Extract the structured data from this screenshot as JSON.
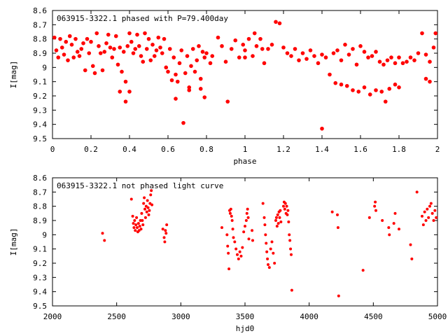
{
  "colors": {
    "series": "#ff0000",
    "axis": "#000000",
    "background": "#ffffff"
  },
  "chart_data": [
    {
      "type": "scatter",
      "title": "063915-3322.1 phased with P=79.400day",
      "xlabel": "phase",
      "ylabel": "I[mag]",
      "xlim": [
        0,
        2
      ],
      "ylim": [
        9.5,
        8.6
      ],
      "y_inverted": true,
      "grid": false,
      "legend": "none",
      "x_ticks": [
        "0",
        "0.2",
        "0.4",
        "0.6",
        "0.8",
        "1",
        "1.2",
        "1.4",
        "1.6",
        "1.8",
        "2"
      ],
      "y_ticks": [
        "8.6",
        "8.7",
        "8.8",
        "8.9",
        "9",
        "9.1",
        "9.2",
        "9.3",
        "9.4",
        "9.5"
      ],
      "points": [
        [
          0.01,
          8.79
        ],
        [
          0.02,
          8.88
        ],
        [
          0.03,
          8.93
        ],
        [
          0.04,
          8.8
        ],
        [
          0.05,
          8.86
        ],
        [
          0.06,
          8.91
        ],
        [
          0.07,
          8.82
        ],
        [
          0.08,
          8.95
        ],
        [
          0.09,
          8.78
        ],
        [
          0.1,
          8.84
        ],
        [
          0.11,
          8.93
        ],
        [
          0.12,
          8.8
        ],
        [
          0.13,
          8.89
        ],
        [
          0.14,
          8.92
        ],
        [
          0.15,
          8.87
        ],
        [
          0.16,
          8.83
        ],
        [
          0.17,
          9.02
        ],
        [
          0.18,
          8.8
        ],
        [
          0.19,
          8.9
        ],
        [
          0.2,
          8.82
        ],
        [
          0.21,
          8.99
        ],
        [
          0.22,
          9.04
        ],
        [
          0.23,
          8.76
        ],
        [
          0.24,
          8.85
        ],
        [
          0.25,
          8.9
        ],
        [
          0.26,
          9.02
        ],
        [
          0.27,
          8.89
        ],
        [
          0.28,
          8.83
        ],
        [
          0.29,
          8.77
        ],
        [
          0.3,
          8.86
        ],
        [
          0.31,
          8.93
        ],
        [
          0.32,
          8.87
        ],
        [
          0.33,
          8.78
        ],
        [
          0.34,
          8.98
        ],
        [
          0.35,
          8.86
        ],
        [
          0.36,
          9.03
        ],
        [
          0.37,
          8.89
        ],
        [
          0.38,
          9.1
        ],
        [
          0.39,
          8.85
        ],
        [
          0.4,
          8.76
        ],
        [
          0.41,
          8.82
        ],
        [
          0.42,
          8.9
        ],
        [
          0.43,
          8.87
        ],
        [
          0.35,
          9.17
        ],
        [
          0.38,
          9.24
        ],
        [
          0.4,
          9.17
        ],
        [
          0.44,
          8.77
        ],
        [
          0.45,
          8.85
        ],
        [
          0.46,
          8.92
        ],
        [
          0.47,
          8.96
        ],
        [
          0.48,
          8.76
        ],
        [
          0.49,
          8.87
        ],
        [
          0.5,
          8.8
        ],
        [
          0.51,
          8.95
        ],
        [
          0.52,
          8.84
        ],
        [
          0.53,
          8.92
        ],
        [
          0.54,
          8.88
        ],
        [
          0.55,
          8.79
        ],
        [
          0.56,
          8.86
        ],
        [
          0.57,
          8.9
        ],
        [
          0.58,
          8.8
        ],
        [
          0.59,
          9.0
        ],
        [
          0.6,
          9.03
        ],
        [
          0.61,
          8.87
        ],
        [
          0.62,
          9.09
        ],
        [
          0.63,
          8.93
        ],
        [
          0.64,
          9.05
        ],
        [
          0.65,
          9.1
        ],
        [
          0.66,
          8.97
        ],
        [
          0.67,
          8.88
        ],
        [
          0.68,
          9.39
        ],
        [
          0.69,
          9.04
        ],
        [
          0.7,
          8.92
        ],
        [
          0.71,
          9.14
        ],
        [
          0.72,
          8.99
        ],
        [
          0.73,
          8.87
        ],
        [
          0.74,
          9.03
        ],
        [
          0.75,
          8.95
        ],
        [
          0.76,
          8.85
        ],
        [
          0.77,
          9.08
        ],
        [
          0.78,
          8.89
        ],
        [
          0.79,
          8.93
        ],
        [
          0.8,
          8.9
        ],
        [
          0.82,
          8.97
        ],
        [
          0.83,
          8.92
        ],
        [
          0.64,
          9.22
        ],
        [
          0.71,
          9.16
        ],
        [
          0.77,
          9.15
        ],
        [
          0.79,
          9.21
        ],
        [
          0.86,
          8.79
        ],
        [
          0.88,
          8.85
        ],
        [
          0.9,
          8.96
        ],
        [
          0.91,
          9.24
        ],
        [
          0.93,
          8.87
        ],
        [
          0.95,
          8.81
        ],
        [
          0.97,
          8.93
        ],
        [
          0.99,
          8.84
        ],
        [
          1.0,
          8.88
        ],
        [
          1.02,
          8.8
        ],
        [
          1.04,
          8.92
        ],
        [
          1.06,
          8.85
        ],
        [
          1.08,
          8.8
        ],
        [
          1.1,
          8.97
        ],
        [
          1.12,
          8.87
        ],
        [
          1.14,
          8.84
        ],
        [
          1.16,
          8.68
        ],
        [
          1.18,
          8.69
        ],
        [
          1.2,
          8.86
        ],
        [
          1.22,
          8.9
        ],
        [
          1.24,
          8.92
        ],
        [
          1.26,
          8.87
        ],
        [
          1.28,
          8.95
        ],
        [
          1.3,
          8.9
        ],
        [
          1.32,
          8.94
        ],
        [
          1.34,
          8.88
        ],
        [
          1.36,
          8.92
        ],
        [
          1.38,
          8.97
        ],
        [
          1.4,
          8.91
        ],
        [
          1.42,
          8.93
        ],
        [
          1.44,
          9.05
        ],
        [
          1.46,
          8.9
        ],
        [
          1.48,
          8.88
        ],
        [
          1.5,
          8.95
        ],
        [
          1.52,
          8.84
        ],
        [
          1.54,
          8.91
        ],
        [
          1.56,
          8.87
        ],
        [
          1.58,
          8.98
        ],
        [
          1.6,
          8.85
        ],
        [
          1.62,
          8.89
        ],
        [
          1.64,
          8.93
        ],
        [
          1.66,
          8.92
        ],
        [
          1.68,
          8.89
        ],
        [
          1.7,
          8.96
        ],
        [
          1.72,
          8.98
        ],
        [
          1.74,
          8.95
        ],
        [
          1.76,
          8.93
        ],
        [
          1.78,
          8.97
        ],
        [
          1.8,
          8.93
        ],
        [
          1.82,
          8.97
        ],
        [
          1.84,
          8.96
        ],
        [
          1.86,
          8.93
        ],
        [
          1.88,
          8.95
        ],
        [
          1.9,
          8.9
        ],
        [
          1.92,
          8.76
        ],
        [
          1.94,
          8.91
        ],
        [
          1.96,
          8.96
        ],
        [
          1.98,
          8.86
        ],
        [
          1.99,
          8.76
        ],
        [
          1.47,
          9.11
        ],
        [
          1.5,
          9.12
        ],
        [
          1.53,
          9.13
        ],
        [
          1.56,
          9.16
        ],
        [
          1.59,
          9.17
        ],
        [
          1.62,
          9.14
        ],
        [
          1.65,
          9.19
        ],
        [
          1.68,
          9.16
        ],
        [
          1.71,
          9.17
        ],
        [
          1.73,
          9.24
        ],
        [
          1.75,
          9.15
        ],
        [
          1.78,
          9.12
        ],
        [
          1.8,
          9.14
        ],
        [
          1.94,
          9.08
        ],
        [
          1.96,
          9.1
        ],
        [
          1.4,
          9.43
        ],
        [
          1.0,
          8.93
        ],
        [
          1.05,
          8.76
        ],
        [
          1.09,
          8.87
        ]
      ]
    },
    {
      "type": "scatter",
      "title": "063915-3322.1 not phased light curve",
      "xlabel": "hjd0",
      "ylabel": "I[mag]",
      "xlim": [
        2000,
        5000
      ],
      "ylim": [
        9.5,
        8.6
      ],
      "y_inverted": true,
      "grid": false,
      "legend": "none",
      "x_ticks": [
        "2000",
        "2500",
        "3000",
        "3500",
        "4000",
        "4500",
        "5000"
      ],
      "y_ticks": [
        "8.6",
        "8.7",
        "8.8",
        "8.9",
        "9",
        "9.1",
        "9.2",
        "9.3",
        "9.4",
        "9.5"
      ],
      "points": [
        [
          2390,
          8.99
        ],
        [
          2405,
          9.04
        ],
        [
          2615,
          8.75
        ],
        [
          2625,
          8.87
        ],
        [
          2630,
          8.92
        ],
        [
          2635,
          8.95
        ],
        [
          2640,
          8.9
        ],
        [
          2645,
          8.97
        ],
        [
          2650,
          8.93
        ],
        [
          2655,
          8.88
        ],
        [
          2660,
          8.95
        ],
        [
          2665,
          8.98
        ],
        [
          2670,
          8.92
        ],
        [
          2675,
          8.97
        ],
        [
          2680,
          8.94
        ],
        [
          2685,
          8.9
        ],
        [
          2690,
          8.96
        ],
        [
          2695,
          8.85
        ],
        [
          2700,
          8.9
        ],
        [
          2705,
          8.93
        ],
        [
          2710,
          8.78
        ],
        [
          2715,
          8.74
        ],
        [
          2720,
          8.82
        ],
        [
          2725,
          8.88
        ],
        [
          2730,
          8.8
        ],
        [
          2735,
          8.84
        ],
        [
          2740,
          8.76
        ],
        [
          2745,
          8.81
        ],
        [
          2750,
          8.86
        ],
        [
          2755,
          8.83
        ],
        [
          2760,
          8.78
        ],
        [
          2765,
          8.72
        ],
        [
          2770,
          8.69
        ],
        [
          2775,
          8.79
        ],
        [
          2860,
          8.96
        ],
        [
          2870,
          9.02
        ],
        [
          2875,
          9.05
        ],
        [
          2880,
          8.97
        ],
        [
          2885,
          8.99
        ],
        [
          2890,
          8.93
        ],
        [
          3320,
          8.95
        ],
        [
          3360,
          9.0
        ],
        [
          3365,
          9.08
        ],
        [
          3370,
          9.13
        ],
        [
          3375,
          9.24
        ],
        [
          3380,
          8.83
        ],
        [
          3385,
          8.85
        ],
        [
          3390,
          8.82
        ],
        [
          3395,
          8.87
        ],
        [
          3400,
          8.9
        ],
        [
          3405,
          8.96
        ],
        [
          3410,
          9.02
        ],
        [
          3420,
          9.05
        ],
        [
          3430,
          9.1
        ],
        [
          3440,
          9.14
        ],
        [
          3450,
          9.17
        ],
        [
          3460,
          9.12
        ],
        [
          3470,
          9.15
        ],
        [
          3480,
          9.09
        ],
        [
          3490,
          8.98
        ],
        [
          3500,
          8.94
        ],
        [
          3510,
          8.9
        ],
        [
          3515,
          8.85
        ],
        [
          3520,
          8.82
        ],
        [
          3525,
          8.88
        ],
        [
          3530,
          9.03
        ],
        [
          3555,
          8.97
        ],
        [
          3560,
          9.04
        ],
        [
          3640,
          8.78
        ],
        [
          3650,
          8.88
        ],
        [
          3655,
          8.93
        ],
        [
          3660,
          9.0
        ],
        [
          3665,
          9.06
        ],
        [
          3670,
          9.12
        ],
        [
          3675,
          9.17
        ],
        [
          3680,
          9.21
        ],
        [
          3690,
          9.23
        ],
        [
          3700,
          9.1
        ],
        [
          3710,
          9.05
        ],
        [
          3720,
          9.13
        ],
        [
          3730,
          9.2
        ],
        [
          3740,
          8.9
        ],
        [
          3745,
          8.88
        ],
        [
          3750,
          8.94
        ],
        [
          3755,
          8.86
        ],
        [
          3760,
          8.92
        ],
        [
          3765,
          8.84
        ],
        [
          3770,
          8.88
        ],
        [
          3775,
          8.83
        ],
        [
          3780,
          8.91
        ],
        [
          3800,
          8.8
        ],
        [
          3805,
          8.77
        ],
        [
          3810,
          8.82
        ],
        [
          3815,
          8.78
        ],
        [
          3820,
          8.85
        ],
        [
          3825,
          8.8
        ],
        [
          3830,
          8.86
        ],
        [
          3835,
          8.83
        ],
        [
          3840,
          8.91
        ],
        [
          3845,
          9.0
        ],
        [
          3850,
          9.04
        ],
        [
          3855,
          9.1
        ],
        [
          3860,
          9.14
        ],
        [
          3865,
          9.39
        ],
        [
          4180,
          8.84
        ],
        [
          4220,
          8.86
        ],
        [
          4225,
          8.95
        ],
        [
          4230,
          9.43
        ],
        [
          4420,
          9.25
        ],
        [
          4470,
          8.88
        ],
        [
          4510,
          8.8
        ],
        [
          4515,
          8.77
        ],
        [
          4520,
          8.83
        ],
        [
          4570,
          8.9
        ],
        [
          4620,
          8.95
        ],
        [
          4625,
          9.0
        ],
        [
          4660,
          8.92
        ],
        [
          4670,
          8.85
        ],
        [
          4700,
          8.96
        ],
        [
          4790,
          9.07
        ],
        [
          4800,
          9.17
        ],
        [
          4840,
          8.7
        ],
        [
          4880,
          8.87
        ],
        [
          4890,
          8.93
        ],
        [
          4900,
          8.84
        ],
        [
          4910,
          8.9
        ],
        [
          4920,
          8.82
        ],
        [
          4930,
          8.88
        ],
        [
          4940,
          8.8
        ],
        [
          4950,
          8.78
        ],
        [
          4960,
          8.85
        ],
        [
          4970,
          8.9
        ],
        [
          4980,
          8.83
        ],
        [
          4990,
          8.88
        ]
      ]
    }
  ]
}
